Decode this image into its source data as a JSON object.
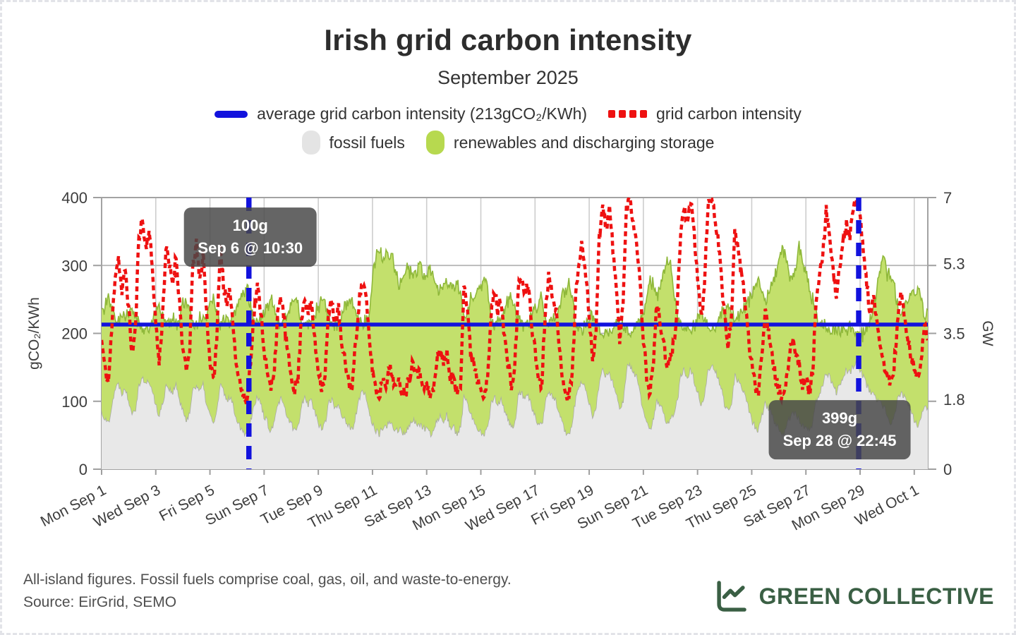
{
  "header": {
    "title": "Irish grid carbon intensity",
    "subtitle": "September 2025"
  },
  "legend": {
    "items": [
      {
        "id": "average",
        "label": "average grid carbon intensity (213gCO₂/KWh)",
        "swatch": "blue-line",
        "color": "#1212dd"
      },
      {
        "id": "intensity",
        "label": "grid carbon intensity",
        "swatch": "red-dotted",
        "color": "#ee1111"
      },
      {
        "id": "fossil",
        "label": "fossil fuels",
        "swatch": "grey-blob",
        "color": "#e4e4e4"
      },
      {
        "id": "renewables",
        "label": "renewables and discharging storage",
        "swatch": "green-blob",
        "color": "#b7d94f"
      }
    ]
  },
  "chart_data": {
    "type": "line+area",
    "title": "Irish grid carbon intensity",
    "subtitle": "September 2025",
    "x": {
      "start": "Mon Sep 1",
      "end": "Wed Oct 1",
      "tick_interval_days": 2,
      "resolution_hours": 3,
      "tick_labels": [
        "Mon Sep 1",
        "Wed Sep 3",
        "Fri Sep 5",
        "Sun Sep 7",
        "Tue Sep 9",
        "Thu Sep 11",
        "Sat Sep 13",
        "Mon Sep 15",
        "Wed Sep 17",
        "Fri Sep 19",
        "Sun Sep 21",
        "Tue Sep 23",
        "Thu Sep 25",
        "Sat Sep 27",
        "Mon Sep 29",
        "Wed Oct 1"
      ]
    },
    "y_left": {
      "label": "gCO₂/KWh",
      "range": [
        0,
        400
      ],
      "ticks": [
        "0",
        "100",
        "200",
        "300",
        "400"
      ]
    },
    "y_right": {
      "label": "GW",
      "range": [
        0,
        7
      ],
      "ticks": [
        "0",
        "1.8",
        "3.5",
        "5.3",
        "7"
      ]
    },
    "average_line": {
      "value": 213,
      "color": "#1212dd",
      "label": "average grid carbon intensity (213gCO₂/KWh)"
    },
    "annotations": [
      {
        "type": "min",
        "text_value": "100g",
        "text_time": "Sep 6 @ 10:30",
        "day_offset": 5.4375,
        "value": 100
      },
      {
        "type": "max",
        "text_value": "399g",
        "text_time": "Sep 28 @ 22:45",
        "day_offset": 27.948,
        "value": 399
      }
    ],
    "series": [
      {
        "name": "grid carbon intensity",
        "axis": "left",
        "kind": "line-dotted",
        "color": "#ee1111",
        "unit": "gCO₂/KWh",
        "values": [
          190,
          148,
          126,
          205,
          288,
          312,
          258,
          296,
          236,
          168,
          206,
          344,
          368,
          326,
          352,
          296,
          214,
          156,
          226,
          326,
          298,
          276,
          314,
          246,
          176,
          142,
          176,
          304,
          330,
          276,
          318,
          230,
          158,
          130,
          186,
          330,
          274,
          236,
          264,
          200,
          150,
          124,
          104,
          100,
          164,
          228,
          268,
          236,
          176,
          136,
          118,
          150,
          224,
          254,
          216,
          166,
          138,
          118,
          132,
          224,
          256,
          226,
          246,
          186,
          148,
          122,
          138,
          228,
          246,
          216,
          236,
          176,
          156,
          128,
          120,
          184,
          246,
          276,
          256,
          196,
          146,
          118,
          108,
          134,
          128,
          148,
          138,
          118,
          128,
          112,
          118,
          142,
          158,
          148,
          138,
          128,
          122,
          108,
          116,
          158,
          178,
          158,
          168,
          138,
          128,
          112,
          128,
          274,
          238,
          168,
          158,
          132,
          124,
          110,
          130,
          224,
          264,
          234,
          254,
          194,
          154,
          124,
          144,
          264,
          284,
          254,
          274,
          214,
          174,
          134,
          124,
          234,
          284,
          264,
          244,
          184,
          144,
          114,
          104,
          144,
          254,
          304,
          334,
          284,
          224,
          164,
          204,
          344,
          394,
          354,
          384,
          324,
          264,
          194,
          244,
          384,
          400,
          364,
          338,
          274,
          194,
          134,
          112,
          164,
          244,
          214,
          184,
          144,
          164,
          184,
          244,
          344,
          390,
          354,
          394,
          344,
          284,
          224,
          264,
          384,
          398,
          374,
          344,
          284,
          224,
          184,
          224,
          344,
          324,
          284,
          254,
          194,
          154,
          124,
          114,
          174,
          234,
          204,
          174,
          134,
          118,
          104,
          114,
          164,
          194,
          174,
          154,
          124,
          134,
          114,
          144,
          244,
          284,
          310,
          385,
          340,
          290,
          260,
          300,
          330,
          360,
          340,
          380,
          399,
          370,
          320,
          270,
          230,
          250,
          210,
          180,
          154,
          140,
          124,
          150,
          210,
          260,
          230,
          194,
          164,
          150,
          130,
          160,
          220,
          190
        ]
      },
      {
        "name": "fossil fuels",
        "axis": "right",
        "kind": "area",
        "fill": "#e8e8e8",
        "edge": "#a8a8a8",
        "unit": "GW",
        "values": [
          1.5,
          1.3,
          1.2,
          1.7,
          2.1,
          2.2,
          2.0,
          2.1,
          1.8,
          1.5,
          1.6,
          2.2,
          2.4,
          2.2,
          2.3,
          2.0,
          1.7,
          1.4,
          1.7,
          2.2,
          2.1,
          2.0,
          2.2,
          1.8,
          1.5,
          1.3,
          1.5,
          2.1,
          2.2,
          2.0,
          2.2,
          1.7,
          1.4,
          1.2,
          1.5,
          2.2,
          2.0,
          1.8,
          1.9,
          1.6,
          1.3,
          1.1,
          1.0,
          0.9,
          1.3,
          1.7,
          1.9,
          1.7,
          1.4,
          1.2,
          1.0,
          1.2,
          1.7,
          1.8,
          1.6,
          1.3,
          1.2,
          1.0,
          1.1,
          1.7,
          1.9,
          1.7,
          1.8,
          1.5,
          1.2,
          1.1,
          1.2,
          1.7,
          1.8,
          1.6,
          1.7,
          1.4,
          1.3,
          1.1,
          1.0,
          1.4,
          1.8,
          2.0,
          1.9,
          1.5,
          1.2,
          1.0,
          0.9,
          1.1,
          1.1,
          1.2,
          1.1,
          1.0,
          1.1,
          0.9,
          1.0,
          1.2,
          1.3,
          1.2,
          1.1,
          1.1,
          1.0,
          0.9,
          1.0,
          1.3,
          1.4,
          1.3,
          1.4,
          1.1,
          1.1,
          0.9,
          1.1,
          1.9,
          1.7,
          1.4,
          1.3,
          1.1,
          1.0,
          0.9,
          1.1,
          1.7,
          1.9,
          1.7,
          1.8,
          1.5,
          1.3,
          1.1,
          1.2,
          1.9,
          2.0,
          1.8,
          1.9,
          1.6,
          1.4,
          1.2,
          1.1,
          1.8,
          2.0,
          1.9,
          1.8,
          1.5,
          1.2,
          1.0,
          0.9,
          1.2,
          1.9,
          2.1,
          2.3,
          2.0,
          1.7,
          1.4,
          1.6,
          2.3,
          2.6,
          2.4,
          2.5,
          2.2,
          1.9,
          1.6,
          1.8,
          2.6,
          2.7,
          2.5,
          2.4,
          2.0,
          1.5,
          1.2,
          1.0,
          1.3,
          1.8,
          1.6,
          1.5,
          1.2,
          1.3,
          1.4,
          1.8,
          2.4,
          2.6,
          2.4,
          2.6,
          2.3,
          2.0,
          1.7,
          1.9,
          2.6,
          2.7,
          2.6,
          2.4,
          2.1,
          1.7,
          1.5,
          1.7,
          2.4,
          2.3,
          2.1,
          1.9,
          1.6,
          1.3,
          1.1,
          1.0,
          1.4,
          1.7,
          1.6,
          1.4,
          1.2,
          1.0,
          0.9,
          1.0,
          1.3,
          1.5,
          1.4,
          1.3,
          1.1,
          1.1,
          1.0,
          1.2,
          1.8,
          2.0,
          2.2,
          2.5,
          2.4,
          2.2,
          2.0,
          2.2,
          2.4,
          2.6,
          2.5,
          2.7,
          2.8,
          2.6,
          2.4,
          2.2,
          2.0,
          1.9,
          1.8,
          1.7,
          1.6,
          1.4,
          1.2,
          1.3,
          1.8,
          2.0,
          1.9,
          1.7,
          1.5,
          1.3,
          1.1,
          1.3,
          1.7,
          1.6
        ]
      },
      {
        "name": "renewables and discharging storage",
        "axis": "right",
        "kind": "area-stacked-on-fossil",
        "fill": "#c3e06c",
        "edge": "#8fb83a",
        "unit": "GW",
        "values": [
          2.6,
          2.9,
          3.2,
          2.5,
          1.8,
          1.6,
          2.0,
          1.8,
          2.2,
          2.7,
          2.4,
          1.5,
          1.2,
          1.5,
          1.3,
          1.7,
          2.4,
          2.8,
          2.3,
          1.5,
          1.7,
          1.9,
          1.5,
          2.1,
          2.7,
          3.0,
          2.6,
          1.7,
          1.5,
          1.9,
          1.6,
          2.2,
          2.9,
          3.2,
          2.6,
          1.5,
          1.8,
          2.1,
          1.9,
          2.4,
          3.0,
          3.3,
          3.6,
          3.8,
          2.9,
          2.2,
          1.9,
          2.2,
          2.6,
          3.0,
          3.4,
          2.9,
          2.1,
          1.9,
          2.2,
          2.7,
          3.1,
          3.4,
          3.2,
          2.1,
          1.8,
          2.1,
          1.9,
          2.5,
          3.0,
          3.3,
          3.1,
          2.1,
          1.9,
          2.2,
          2.0,
          2.6,
          2.9,
          3.2,
          3.4,
          2.7,
          1.9,
          1.7,
          1.9,
          2.5,
          3.8,
          4.4,
          4.8,
          4.3,
          4.5,
          4.2,
          4.4,
          4.0,
          3.6,
          4.0,
          4.3,
          3.9,
          3.7,
          3.9,
          4.1,
          3.8,
          3.9,
          4.2,
          4.0,
          3.4,
          3.2,
          3.5,
          3.3,
          3.7,
          3.5,
          3.9,
          3.4,
          1.9,
          2.3,
          3.0,
          3.2,
          3.6,
          3.7,
          4.0,
          3.5,
          2.2,
          1.8,
          2.2,
          2.0,
          2.6,
          3.0,
          3.4,
          3.0,
          1.9,
          1.7,
          2.0,
          1.8,
          2.3,
          2.7,
          3.1,
          3.3,
          2.2,
          1.7,
          1.9,
          2.1,
          2.6,
          3.2,
          3.6,
          4.0,
          3.2,
          1.9,
          1.5,
          1.3,
          1.7,
          2.1,
          2.6,
          2.2,
          1.3,
          0.9,
          1.2,
          1.0,
          1.4,
          1.8,
          2.3,
          1.9,
          1.0,
          0.8,
          1.1,
          1.3,
          1.8,
          2.5,
          3.2,
          3.8,
          3.4,
          2.6,
          3.0,
          3.6,
          4.2,
          4.0,
          3.2,
          2.2,
          1.3,
          1.0,
          1.3,
          1.0,
          1.4,
          1.9,
          2.4,
          2.0,
          1.1,
          0.9,
          1.1,
          1.4,
          1.9,
          2.3,
          2.7,
          2.3,
          1.4,
          1.6,
          1.9,
          2.2,
          2.7,
          3.2,
          3.6,
          3.9,
          3.2,
          2.6,
          2.9,
          3.3,
          3.8,
          4.4,
          4.8,
          4.5,
          3.8,
          3.4,
          3.7,
          4.5,
          4.2,
          4.0,
          3.6,
          3.2,
          2.2,
          1.8,
          1.5,
          1.2,
          1.0,
          1.4,
          1.6,
          1.4,
          1.2,
          1.0,
          1.2,
          0.9,
          0.8,
          0.9,
          1.1,
          1.5,
          1.8,
          2.2,
          2.8,
          3.4,
          3.9,
          3.6,
          3.9,
          3.5,
          2.4,
          2.0,
          2.3,
          2.6,
          3.0,
          3.2,
          3.5,
          3.1,
          2.3,
          2.5
        ]
      }
    ],
    "layout_hints": {
      "grid": true,
      "legend_position": "top",
      "x_label_rotation_deg": -28,
      "upsample": 4,
      "jitter_ci": 20,
      "jitter_gw": 0.2
    }
  },
  "footer": {
    "note": "All-island figures. Fossil fuels comprise coal, gas, oil, and waste-to-energy.",
    "source": "Source: EirGrid, SEMO",
    "brand": "GREEN COLLECTIVE",
    "brand_color": "#3a5f44"
  }
}
